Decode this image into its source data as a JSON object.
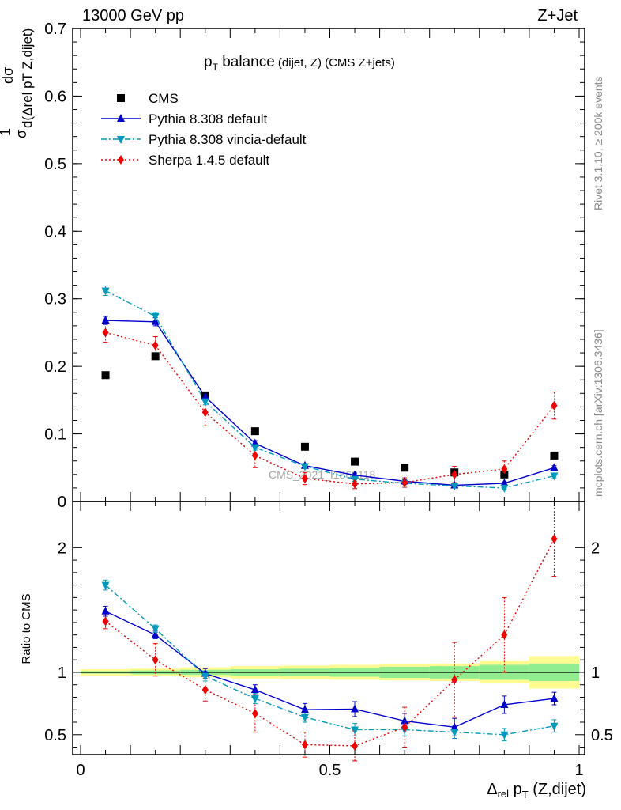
{
  "header": {
    "left": "13000 GeV pp",
    "right": "Z+Jet"
  },
  "side_labels": {
    "rivet": "Rivet 3.1.10, ≥ 200k events",
    "mcplots": "mcplots.cern.ch [arXiv:1306.3436]"
  },
  "watermark": "CMS_2021_I1866118",
  "title": {
    "main_p": "p",
    "main_sub": "T",
    "main_rest": " balance",
    "small": " (dijet, Z) (CMS Z+jets)"
  },
  "ylabel_top": {
    "frac_one": "1",
    "sigma": "σ",
    "dsigma": "dσ",
    "denom": "d(Δrel pT Z,dijet)"
  },
  "ylabel_bottom": "Ratio to CMS",
  "xlabel": {
    "delta": "Δ",
    "rel": "rel",
    "p": " p",
    "T": "T",
    "rest": " (Z,dijet)"
  },
  "legend": [
    {
      "label": "CMS",
      "color": "#000000",
      "marker": "square"
    },
    {
      "label": "Pythia 8.308 default",
      "color": "#0000cc",
      "marker": "triangle-up"
    },
    {
      "label": "Pythia 8.308 vincia-default",
      "color": "#0099bb",
      "marker": "triangle-down"
    },
    {
      "label": "Sherpa 1.4.5 default",
      "color": "#ee0000",
      "marker": "diamond"
    }
  ],
  "chart_data": {
    "type": "scatter",
    "x": [
      0.05,
      0.15,
      0.25,
      0.35,
      0.45,
      0.55,
      0.65,
      0.75,
      0.85,
      0.95
    ],
    "xlim": [
      0,
      1
    ],
    "xticks": [
      "0",
      "0.5",
      "1"
    ],
    "top_panel": {
      "ylim": [
        0,
        0.7
      ],
      "yticks": [
        "0",
        "0.1",
        "0.2",
        "0.3",
        "0.4",
        "0.5",
        "0.6",
        "0.7"
      ],
      "series": [
        {
          "name": "CMS",
          "color": "#000000",
          "marker": "square",
          "line": "none",
          "values": [
            0.187,
            0.215,
            0.157,
            0.104,
            0.081,
            0.059,
            0.05,
            0.043,
            0.04,
            0.068
          ]
        },
        {
          "name": "Pythia 8.308 default",
          "color": "#0000cc",
          "marker": "triangle-up",
          "line": "solid",
          "values": [
            0.268,
            0.266,
            0.155,
            0.086,
            0.053,
            0.039,
            0.03,
            0.024,
            0.027,
            0.05
          ],
          "errors": [
            0.006,
            0.006,
            0.005,
            0.004,
            0.003,
            0.003,
            0.002,
            0.002,
            0.002,
            0.003
          ]
        },
        {
          "name": "Pythia 8.308 vincia-default",
          "color": "#0099bb",
          "marker": "triangle-down",
          "line": "dashdot",
          "values": [
            0.312,
            0.274,
            0.148,
            0.08,
            0.052,
            0.033,
            0.027,
            0.023,
            0.02,
            0.038
          ],
          "errors": [
            0.007,
            0.006,
            0.005,
            0.004,
            0.003,
            0.003,
            0.002,
            0.002,
            0.002,
            0.003
          ]
        },
        {
          "name": "Sherpa 1.4.5 default",
          "color": "#ee0000",
          "marker": "diamond",
          "line": "dotted",
          "values": [
            0.25,
            0.231,
            0.132,
            0.068,
            0.034,
            0.026,
            0.028,
            0.04,
            0.048,
            0.142
          ],
          "errors": [
            0.014,
            0.013,
            0.02,
            0.018,
            0.009,
            0.007,
            0.007,
            0.012,
            0.012,
            0.02
          ]
        }
      ]
    },
    "bottom_panel": {
      "ylim": [
        0.34,
        2.37
      ],
      "yticks": [
        "0.5",
        "1",
        "2"
      ],
      "reference": 1,
      "band_inner": [
        0.01,
        0.015,
        0.02,
        0.025,
        0.03,
        0.035,
        0.045,
        0.05,
        0.06,
        0.07
      ],
      "band_outer": [
        0.025,
        0.03,
        0.04,
        0.05,
        0.055,
        0.06,
        0.065,
        0.07,
        0.09,
        0.13
      ],
      "band_inner_color": "#90ee90",
      "band_outer_color": "#fffb90",
      "series": [
        {
          "name": "Pythia 8.308 default",
          "color": "#0000cc",
          "marker": "triangle-up",
          "line": "solid",
          "values": [
            1.49,
            1.3,
            0.99,
            0.86,
            0.7,
            0.705,
            0.61,
            0.56,
            0.74,
            0.79
          ],
          "errors": [
            0.04,
            0.03,
            0.04,
            0.04,
            0.05,
            0.06,
            0.06,
            0.07,
            0.07,
            0.05
          ]
        },
        {
          "name": "Pythia 8.308 vincia-default",
          "color": "#0099bb",
          "marker": "triangle-down",
          "line": "dashdot",
          "values": [
            1.7,
            1.35,
            0.97,
            0.79,
            0.64,
            0.54,
            0.54,
            0.52,
            0.5,
            0.57
          ],
          "errors": [
            0.04,
            0.03,
            0.04,
            0.04,
            0.04,
            0.05,
            0.05,
            0.05,
            0.05,
            0.05
          ]
        },
        {
          "name": "Sherpa 1.4.5 default",
          "color": "#ee0000",
          "marker": "diamond",
          "line": "dotted",
          "values": [
            1.41,
            1.1,
            0.86,
            0.67,
            0.42,
            0.41,
            0.56,
            0.94,
            1.3,
            2.07
          ],
          "errors": [
            0.06,
            0.13,
            0.09,
            0.15,
            0.1,
            0.12,
            0.16,
            0.3,
            0.3,
            0.3
          ]
        }
      ]
    }
  }
}
